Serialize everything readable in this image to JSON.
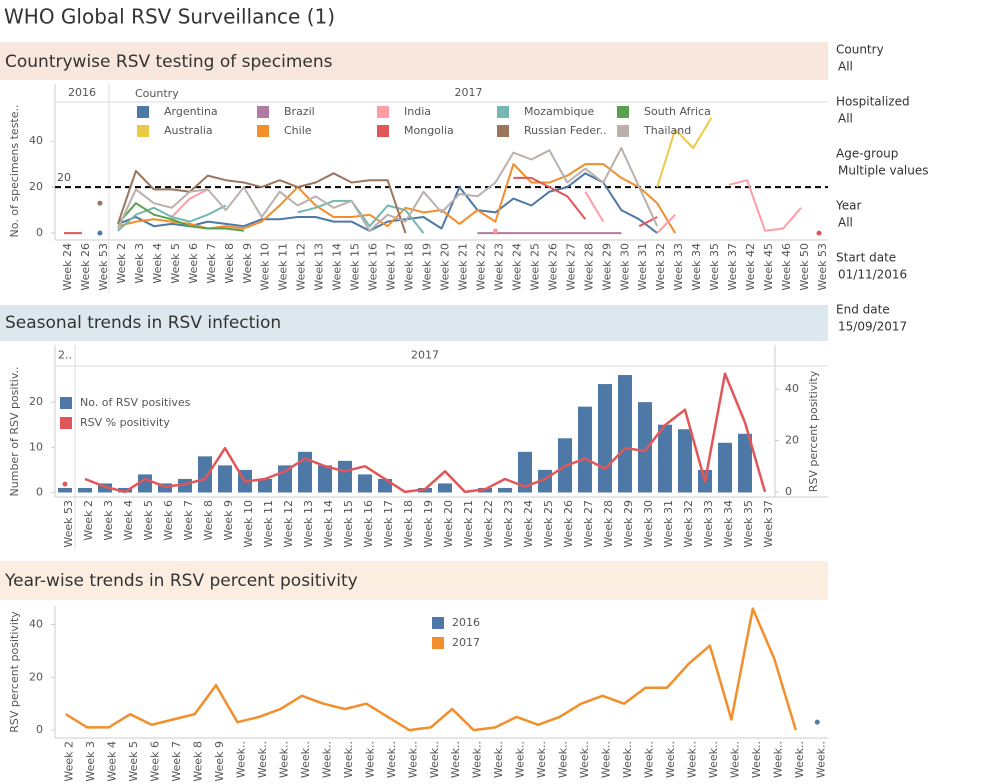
{
  "title": "WHO Global RSV Surveillance (1)",
  "filters": [
    {
      "label": "Country",
      "value": "All"
    },
    {
      "label": "Hospitalized",
      "value": "All"
    },
    {
      "label": "Age-group",
      "value": "Multiple values"
    },
    {
      "label": "Year",
      "value": "All"
    },
    {
      "label": "Start date",
      "value": "01/11/2016"
    },
    {
      "label": "End date",
      "value": "15/09/2017"
    }
  ],
  "chart_data": [
    {
      "type": "line",
      "title": "Countrywise RSV testing of specimens",
      "y_label": "No. of specimens teste..",
      "legend_title": "Country",
      "categories": [
        "Week 24",
        "Week 26",
        "Week 53",
        "Week 2",
        "Week 3",
        "Week 4",
        "Week 5",
        "Week 6",
        "Week 7",
        "Week 8",
        "Week 9",
        "Week 10",
        "Week 11",
        "Week 12",
        "Week 13",
        "Week 14",
        "Week 15",
        "Week 16",
        "Week 17",
        "Week 18",
        "Week 19",
        "Week 20",
        "Week 21",
        "Week 22",
        "Week 23",
        "Week 24",
        "Week 25",
        "Week 26",
        "Week 27",
        "Week 28",
        "Week 29",
        "Week 30",
        "Week 31",
        "Week 32",
        "Week 33",
        "Week 34",
        "Week 35",
        "Week 37",
        "Week 42",
        "Week 45",
        "Week 46",
        "Week 50",
        "Week 53"
      ],
      "category_years": [
        "2016",
        "2016",
        "2016",
        "2017",
        "2017",
        "2017",
        "2017",
        "2017",
        "2017",
        "2017",
        "2017",
        "2017",
        "2017",
        "2017",
        "2017",
        "2017",
        "2017",
        "2017",
        "2017",
        "2017",
        "2017",
        "2017",
        "2017",
        "2017",
        "2017",
        "2017",
        "2017",
        "2017",
        "2017",
        "2017",
        "2017",
        "2017",
        "2017",
        "2017",
        "2017",
        "2017",
        "2017",
        "2017",
        "2017",
        "2017",
        "2017",
        "2017",
        "2017"
      ],
      "ylim": [
        -3,
        57
      ],
      "yticks": [
        0,
        20,
        40
      ],
      "reference_line": 20,
      "series": [
        {
          "name": "Argentina",
          "color": "#4e79a7",
          "values": [
            null,
            null,
            0,
            4,
            7,
            3,
            4,
            3,
            5,
            4,
            3,
            6,
            6,
            7,
            7,
            5,
            5,
            1,
            5,
            6,
            7,
            2,
            20,
            10,
            9,
            15,
            12,
            18,
            20,
            26,
            22,
            10,
            6,
            0,
            null,
            null,
            null,
            null,
            null,
            null,
            null,
            null,
            null
          ]
        },
        {
          "name": "Australia",
          "color": "#edc948",
          "values": [
            null,
            null,
            null,
            null,
            null,
            null,
            null,
            null,
            null,
            null,
            null,
            null,
            null,
            null,
            null,
            null,
            null,
            null,
            null,
            null,
            null,
            null,
            null,
            null,
            null,
            null,
            null,
            null,
            null,
            null,
            null,
            null,
            null,
            20,
            45,
            37,
            50,
            null,
            null,
            null,
            null,
            null,
            null
          ]
        },
        {
          "name": "Brazil",
          "color": "#b07aa1",
          "values": [
            null,
            null,
            null,
            null,
            null,
            null,
            null,
            null,
            null,
            null,
            null,
            null,
            null,
            null,
            null,
            null,
            null,
            null,
            null,
            null,
            null,
            null,
            null,
            0,
            0,
            0,
            0,
            0,
            0,
            0,
            0,
            0,
            null,
            null,
            null,
            null,
            null,
            null,
            null,
            null,
            null,
            null,
            null
          ]
        },
        {
          "name": "Chile",
          "color": "#f28e2b",
          "values": [
            null,
            null,
            null,
            3,
            5,
            6,
            5,
            4,
            2,
            3,
            2,
            5,
            12,
            20,
            12,
            7,
            7,
            8,
            3,
            11,
            9,
            10,
            4,
            10,
            5,
            30,
            22,
            22,
            25,
            30,
            30,
            24,
            20,
            13,
            0,
            null,
            null,
            null,
            null,
            null,
            null,
            null,
            null
          ]
        },
        {
          "name": "India",
          "color": "#ff9da7",
          "values": [
            null,
            null,
            null,
            null,
            null,
            null,
            7,
            15,
            19,
            null,
            null,
            null,
            null,
            null,
            null,
            null,
            null,
            null,
            null,
            null,
            null,
            null,
            null,
            null,
            1,
            null,
            null,
            null,
            null,
            18,
            5,
            null,
            null,
            0,
            8,
            null,
            null,
            21,
            23,
            1,
            2,
            11,
            null
          ]
        },
        {
          "name": "Mongolia",
          "color": "#e15759",
          "values": [
            0,
            0,
            null,
            null,
            null,
            null,
            null,
            null,
            null,
            null,
            null,
            null,
            null,
            null,
            null,
            null,
            null,
            null,
            null,
            null,
            null,
            null,
            null,
            null,
            null,
            24,
            24,
            20,
            16,
            6,
            null,
            null,
            3,
            7,
            null,
            null,
            null,
            null,
            null,
            null,
            null,
            null,
            0
          ]
        },
        {
          "name": "Mozambique",
          "color": "#76b7b2",
          "values": [
            null,
            null,
            null,
            1,
            8,
            11,
            7,
            5,
            8,
            12,
            null,
            null,
            null,
            9,
            11,
            14,
            14,
            3,
            12,
            10,
            0,
            null,
            null,
            null,
            null,
            null,
            null,
            null,
            null,
            null,
            null,
            null,
            null,
            null,
            null,
            null,
            null,
            null,
            null,
            null,
            null,
            null,
            null
          ]
        },
        {
          "name": "Russian Feder..",
          "color": "#9c755f",
          "values": [
            null,
            null,
            13,
            4,
            27,
            19,
            19,
            18,
            25,
            23,
            22,
            20,
            23,
            20,
            22,
            26,
            22,
            23,
            23,
            0,
            null,
            null,
            null,
            null,
            null,
            null,
            null,
            null,
            null,
            null,
            null,
            null,
            null,
            null,
            null,
            null,
            null,
            null,
            null,
            null,
            null,
            null,
            null
          ]
        },
        {
          "name": "South Africa",
          "color": "#59a14f",
          "values": [
            null,
            null,
            null,
            4,
            13,
            8,
            6,
            3,
            2,
            2,
            1,
            null,
            null,
            null,
            null,
            null,
            null,
            null,
            null,
            null,
            null,
            null,
            null,
            null,
            null,
            null,
            null,
            null,
            null,
            null,
            null,
            null,
            null,
            null,
            null,
            null,
            null,
            null,
            null,
            null,
            null,
            null,
            null
          ]
        },
        {
          "name": "Thailand",
          "color": "#bab0ac",
          "values": [
            null,
            null,
            null,
            2,
            19,
            13,
            11,
            18,
            19,
            10,
            20,
            7,
            18,
            12,
            16,
            11,
            14,
            1,
            8,
            5,
            18,
            9,
            17,
            16,
            22,
            35,
            32,
            36,
            22,
            28,
            22,
            37,
            20,
            3,
            null,
            null,
            null,
            null,
            null,
            null,
            null,
            null,
            null
          ]
        }
      ]
    },
    {
      "type": "combo",
      "title": "Seasonal trends in RSV infection",
      "y_label": "Number of RSV positiv..",
      "y2_label": "RSV percent positivity",
      "categories": [
        "Week 53",
        "Week 2",
        "Week 3",
        "Week 4",
        "Week 5",
        "Week 6",
        "Week 7",
        "Week 8",
        "Week 9",
        "Week 10",
        "Week 11",
        "Week 12",
        "Week 13",
        "Week 14",
        "Week 15",
        "Week 16",
        "Week 17",
        "Week 18",
        "Week 19",
        "Week 20",
        "Week 21",
        "Week 22",
        "Week 23",
        "Week 24",
        "Week 25",
        "Week 26",
        "Week 27",
        "Week 28",
        "Week 29",
        "Week 30",
        "Week 31",
        "Week 32",
        "Week 33",
        "Week 34",
        "Week 35",
        "Week 37"
      ],
      "category_years": [
        "2..",
        "2017",
        "2017",
        "2017",
        "2017",
        "2017",
        "2017",
        "2017",
        "2017",
        "2017",
        "2017",
        "2017",
        "2017",
        "2017",
        "2017",
        "2017",
        "2017",
        "2017",
        "2017",
        "2017",
        "2017",
        "2017",
        "2017",
        "2017",
        "2017",
        "2017",
        "2017",
        "2017",
        "2017",
        "2017",
        "2017",
        "2017",
        "2017",
        "2017",
        "2017",
        "2017"
      ],
      "ylim": [
        -1,
        28
      ],
      "yticks": [
        0,
        10,
        20
      ],
      "y2lim": [
        -2,
        49
      ],
      "y2ticks": [
        0,
        20,
        40
      ],
      "series": [
        {
          "name": "No. of RSV positives",
          "color": "#4e79a7",
          "type": "bar",
          "values": [
            1,
            1,
            2,
            1,
            4,
            2,
            3,
            8,
            6,
            5,
            3,
            6,
            9,
            6,
            7,
            4,
            3,
            0,
            1,
            2,
            0,
            1,
            1,
            9,
            5,
            12,
            19,
            24,
            26,
            20,
            15,
            14,
            5,
            11,
            13,
            0
          ]
        },
        {
          "name": "RSV % positivity",
          "color": "#e15759",
          "type": "line",
          "axis": "y2",
          "values": [
            3,
            5,
            2,
            0,
            5,
            2,
            3,
            5,
            17,
            4,
            5,
            8,
            13,
            10,
            8,
            10,
            5,
            0,
            1,
            8,
            0,
            1,
            5,
            2,
            5,
            10,
            13,
            9,
            17,
            16,
            26,
            32,
            4,
            46,
            27,
            0
          ]
        }
      ]
    },
    {
      "type": "line",
      "title": "Year-wise trends in RSV percent positivity",
      "y_label": "RSV percent positivity",
      "categories": [
        "Week 2",
        "Week 3",
        "Week 4",
        "Week 5",
        "Week 6",
        "Week 7",
        "Week 8",
        "Week 9",
        "Week..",
        "Week..",
        "Week..",
        "Week..",
        "Week..",
        "Week..",
        "Week..",
        "Week..",
        "Week..",
        "Week..",
        "Week..",
        "Week..",
        "Week..",
        "Week..",
        "Week..",
        "Week..",
        "Week..",
        "Week..",
        "Week..",
        "Week..",
        "Week..",
        "Week..",
        "Week..",
        "Week..",
        "Week..",
        "Week..",
        "Week..",
        "Week.."
      ],
      "ylim": [
        -3,
        47
      ],
      "yticks": [
        0,
        20,
        40
      ],
      "series": [
        {
          "name": "2016",
          "color": "#4e79a7",
          "values": [
            null,
            null,
            null,
            null,
            null,
            null,
            null,
            null,
            null,
            null,
            null,
            null,
            null,
            null,
            null,
            null,
            null,
            null,
            null,
            null,
            null,
            null,
            null,
            null,
            null,
            null,
            null,
            null,
            null,
            null,
            null,
            null,
            null,
            null,
            null,
            3
          ]
        },
        {
          "name": "2017",
          "color": "#f28e2b",
          "values": [
            6,
            1,
            1,
            6,
            2,
            4,
            6,
            17,
            3,
            5,
            8,
            13,
            10,
            8,
            10,
            5,
            0,
            1,
            8,
            0,
            1,
            5,
            2,
            5,
            10,
            13,
            10,
            16,
            16,
            25,
            32,
            4,
            46,
            27,
            0,
            null
          ]
        }
      ]
    }
  ]
}
